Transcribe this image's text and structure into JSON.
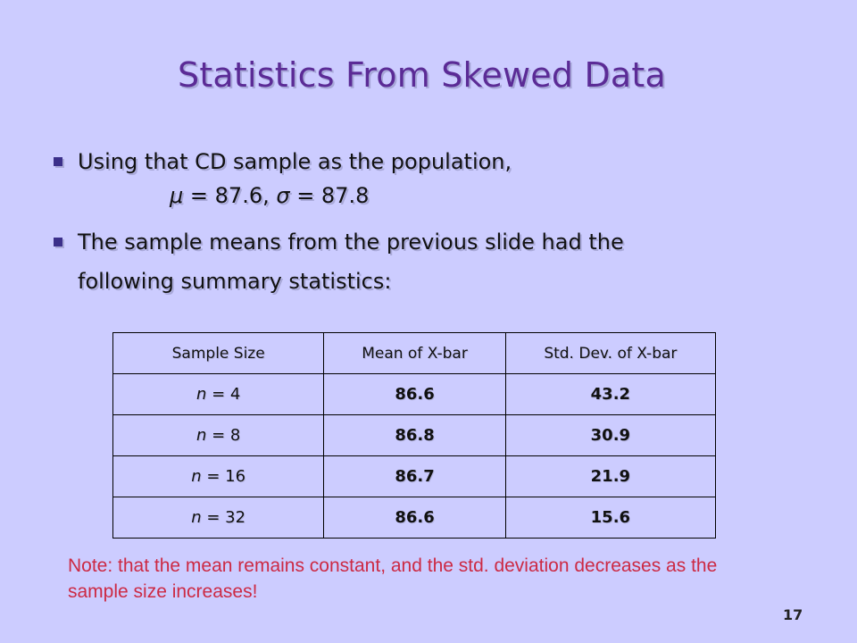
{
  "slide": {
    "title": "Statistics From Skewed Data",
    "bullets": [
      "Using that CD sample as the population,",
      "The sample means from the previous slide had the",
      "following summary statistics:"
    ],
    "formula": {
      "mu_symbol": "μ",
      "mu_text": " = 87.6, ",
      "sigma_symbol": "σ",
      "sigma_text": " = 87.8"
    },
    "table": {
      "headers": [
        "Sample Size",
        "Mean of X-bar",
        "Std. Dev. of X-bar"
      ],
      "rows": [
        {
          "n_label": "n",
          "n_value": " = 4",
          "mean": "86.6",
          "sd": "43.2"
        },
        {
          "n_label": "n",
          "n_value": " = 8",
          "mean": "86.8",
          "sd": "30.9"
        },
        {
          "n_label": "n",
          "n_value": " = 16",
          "mean": "86.7",
          "sd": "21.9"
        },
        {
          "n_label": "n",
          "n_value": " = 32",
          "mean": "86.6",
          "sd": "15.6"
        }
      ]
    },
    "note": "Note: that the mean remains constant, and the std. deviation decreases as the sample size increases!",
    "page_number": "17",
    "colors": {
      "background": "#ccccff",
      "title": "#5b2b96",
      "note": "#cc2a44",
      "bullet": "#3b2f8a"
    }
  }
}
